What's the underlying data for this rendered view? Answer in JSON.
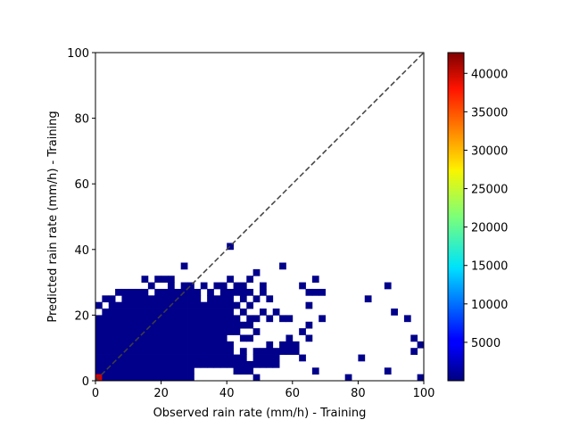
{
  "chart_data": {
    "type": "heatmap",
    "title": "",
    "xlabel": "Observed rain rate (mm/h) - Training",
    "ylabel": "Predicted rain rate (mm/h) - Training",
    "xlim": [
      0,
      100
    ],
    "ylim": [
      0,
      100
    ],
    "xticks": [
      0,
      20,
      40,
      60,
      80,
      100
    ],
    "yticks": [
      0,
      20,
      40,
      60,
      80,
      100
    ],
    "bin_width": 2,
    "identity_line": {
      "from": [
        0,
        0
      ],
      "to": [
        100,
        100
      ],
      "style": "dashed",
      "color": "#404040"
    },
    "colorbar": {
      "colormap": "jet",
      "range": [
        0,
        42700
      ],
      "ticks": [
        5000,
        10000,
        15000,
        20000,
        25000,
        30000,
        35000,
        40000
      ],
      "tick_labels": [
        "5000",
        "10000",
        "15000",
        "20000",
        "25000",
        "30000",
        "35000",
        "40000"
      ]
    },
    "peak_cell": {
      "x": 0,
      "y": 0,
      "count": 42700
    },
    "occupied_cells": [
      [
        0,
        0
      ],
      [
        2,
        0
      ],
      [
        4,
        0
      ],
      [
        6,
        0
      ],
      [
        8,
        0
      ],
      [
        10,
        0
      ],
      [
        12,
        0
      ],
      [
        14,
        0
      ],
      [
        16,
        0
      ],
      [
        18,
        0
      ],
      [
        20,
        0
      ],
      [
        22,
        0
      ],
      [
        24,
        0
      ],
      [
        26,
        0
      ],
      [
        28,
        0
      ],
      [
        48,
        0
      ],
      [
        76,
        0
      ],
      [
        98,
        0
      ],
      [
        0,
        2
      ],
      [
        2,
        2
      ],
      [
        4,
        2
      ],
      [
        6,
        2
      ],
      [
        8,
        2
      ],
      [
        10,
        2
      ],
      [
        12,
        2
      ],
      [
        14,
        2
      ],
      [
        16,
        2
      ],
      [
        18,
        2
      ],
      [
        20,
        2
      ],
      [
        22,
        2
      ],
      [
        24,
        2
      ],
      [
        26,
        2
      ],
      [
        28,
        2
      ],
      [
        42,
        2
      ],
      [
        44,
        2
      ],
      [
        46,
        2
      ],
      [
        66,
        2
      ],
      [
        88,
        2
      ],
      [
        0,
        4
      ],
      [
        2,
        4
      ],
      [
        4,
        4
      ],
      [
        6,
        4
      ],
      [
        8,
        4
      ],
      [
        10,
        4
      ],
      [
        12,
        4
      ],
      [
        14,
        4
      ],
      [
        16,
        4
      ],
      [
        18,
        4
      ],
      [
        20,
        4
      ],
      [
        22,
        4
      ],
      [
        24,
        4
      ],
      [
        26,
        4
      ],
      [
        28,
        4
      ],
      [
        30,
        4
      ],
      [
        32,
        4
      ],
      [
        34,
        4
      ],
      [
        36,
        4
      ],
      [
        38,
        4
      ],
      [
        40,
        4
      ],
      [
        42,
        4
      ],
      [
        44,
        4
      ],
      [
        46,
        4
      ],
      [
        48,
        4
      ],
      [
        50,
        4
      ],
      [
        52,
        4
      ],
      [
        54,
        4
      ],
      [
        0,
        6
      ],
      [
        2,
        6
      ],
      [
        4,
        6
      ],
      [
        6,
        6
      ],
      [
        8,
        6
      ],
      [
        10,
        6
      ],
      [
        12,
        6
      ],
      [
        14,
        6
      ],
      [
        16,
        6
      ],
      [
        18,
        6
      ],
      [
        20,
        6
      ],
      [
        22,
        6
      ],
      [
        24,
        6
      ],
      [
        26,
        6
      ],
      [
        28,
        6
      ],
      [
        30,
        6
      ],
      [
        32,
        6
      ],
      [
        34,
        6
      ],
      [
        36,
        6
      ],
      [
        38,
        6
      ],
      [
        40,
        6
      ],
      [
        42,
        6
      ],
      [
        44,
        6
      ],
      [
        48,
        6
      ],
      [
        50,
        6
      ],
      [
        52,
        6
      ],
      [
        54,
        6
      ],
      [
        62,
        6
      ],
      [
        80,
        6
      ],
      [
        0,
        8
      ],
      [
        2,
        8
      ],
      [
        4,
        8
      ],
      [
        6,
        8
      ],
      [
        8,
        8
      ],
      [
        10,
        8
      ],
      [
        12,
        8
      ],
      [
        14,
        8
      ],
      [
        16,
        8
      ],
      [
        18,
        8
      ],
      [
        20,
        8
      ],
      [
        22,
        8
      ],
      [
        24,
        8
      ],
      [
        26,
        8
      ],
      [
        28,
        8
      ],
      [
        30,
        8
      ],
      [
        32,
        8
      ],
      [
        34,
        8
      ],
      [
        36,
        8
      ],
      [
        38,
        8
      ],
      [
        40,
        8
      ],
      [
        44,
        8
      ],
      [
        48,
        8
      ],
      [
        50,
        8
      ],
      [
        52,
        8
      ],
      [
        54,
        8
      ],
      [
        56,
        8
      ],
      [
        58,
        8
      ],
      [
        60,
        8
      ],
      [
        96,
        8
      ],
      [
        0,
        10
      ],
      [
        2,
        10
      ],
      [
        4,
        10
      ],
      [
        6,
        10
      ],
      [
        8,
        10
      ],
      [
        10,
        10
      ],
      [
        12,
        10
      ],
      [
        14,
        10
      ],
      [
        16,
        10
      ],
      [
        18,
        10
      ],
      [
        20,
        10
      ],
      [
        22,
        10
      ],
      [
        24,
        10
      ],
      [
        26,
        10
      ],
      [
        28,
        10
      ],
      [
        30,
        10
      ],
      [
        32,
        10
      ],
      [
        34,
        10
      ],
      [
        36,
        10
      ],
      [
        38,
        10
      ],
      [
        40,
        10
      ],
      [
        52,
        10
      ],
      [
        56,
        10
      ],
      [
        58,
        10
      ],
      [
        60,
        10
      ],
      [
        98,
        10
      ],
      [
        0,
        12
      ],
      [
        2,
        12
      ],
      [
        4,
        12
      ],
      [
        6,
        12
      ],
      [
        8,
        12
      ],
      [
        10,
        12
      ],
      [
        12,
        12
      ],
      [
        14,
        12
      ],
      [
        16,
        12
      ],
      [
        18,
        12
      ],
      [
        20,
        12
      ],
      [
        22,
        12
      ],
      [
        24,
        12
      ],
      [
        26,
        12
      ],
      [
        28,
        12
      ],
      [
        30,
        12
      ],
      [
        32,
        12
      ],
      [
        34,
        12
      ],
      [
        36,
        12
      ],
      [
        38,
        12
      ],
      [
        44,
        12
      ],
      [
        46,
        12
      ],
      [
        58,
        12
      ],
      [
        64,
        12
      ],
      [
        96,
        12
      ],
      [
        0,
        14
      ],
      [
        2,
        14
      ],
      [
        4,
        14
      ],
      [
        6,
        14
      ],
      [
        8,
        14
      ],
      [
        10,
        14
      ],
      [
        12,
        14
      ],
      [
        14,
        14
      ],
      [
        16,
        14
      ],
      [
        18,
        14
      ],
      [
        20,
        14
      ],
      [
        22,
        14
      ],
      [
        24,
        14
      ],
      [
        26,
        14
      ],
      [
        28,
        14
      ],
      [
        30,
        14
      ],
      [
        32,
        14
      ],
      [
        34,
        14
      ],
      [
        36,
        14
      ],
      [
        38,
        14
      ],
      [
        40,
        14
      ],
      [
        42,
        14
      ],
      [
        48,
        14
      ],
      [
        62,
        14
      ],
      [
        100,
        14
      ],
      [
        0,
        16
      ],
      [
        2,
        16
      ],
      [
        4,
        16
      ],
      [
        6,
        16
      ],
      [
        8,
        16
      ],
      [
        10,
        16
      ],
      [
        12,
        16
      ],
      [
        14,
        16
      ],
      [
        16,
        16
      ],
      [
        18,
        16
      ],
      [
        20,
        16
      ],
      [
        22,
        16
      ],
      [
        24,
        16
      ],
      [
        26,
        16
      ],
      [
        28,
        16
      ],
      [
        30,
        16
      ],
      [
        32,
        16
      ],
      [
        34,
        16
      ],
      [
        36,
        16
      ],
      [
        38,
        16
      ],
      [
        40,
        16
      ],
      [
        42,
        16
      ],
      [
        44,
        16
      ],
      [
        46,
        16
      ],
      [
        64,
        16
      ],
      [
        0,
        18
      ],
      [
        2,
        18
      ],
      [
        4,
        18
      ],
      [
        6,
        18
      ],
      [
        8,
        18
      ],
      [
        10,
        18
      ],
      [
        12,
        18
      ],
      [
        14,
        18
      ],
      [
        16,
        18
      ],
      [
        18,
        18
      ],
      [
        20,
        18
      ],
      [
        22,
        18
      ],
      [
        24,
        18
      ],
      [
        26,
        18
      ],
      [
        28,
        18
      ],
      [
        30,
        18
      ],
      [
        32,
        18
      ],
      [
        34,
        18
      ],
      [
        36,
        18
      ],
      [
        38,
        18
      ],
      [
        40,
        18
      ],
      [
        42,
        18
      ],
      [
        46,
        18
      ],
      [
        48,
        18
      ],
      [
        52,
        18
      ],
      [
        56,
        18
      ],
      [
        58,
        18
      ],
      [
        68,
        18
      ],
      [
        94,
        18
      ],
      [
        2,
        20
      ],
      [
        4,
        20
      ],
      [
        6,
        20
      ],
      [
        8,
        20
      ],
      [
        10,
        20
      ],
      [
        12,
        20
      ],
      [
        14,
        20
      ],
      [
        16,
        20
      ],
      [
        18,
        20
      ],
      [
        20,
        20
      ],
      [
        22,
        20
      ],
      [
        24,
        20
      ],
      [
        26,
        20
      ],
      [
        28,
        20
      ],
      [
        30,
        20
      ],
      [
        32,
        20
      ],
      [
        34,
        20
      ],
      [
        36,
        20
      ],
      [
        38,
        20
      ],
      [
        40,
        20
      ],
      [
        44,
        20
      ],
      [
        50,
        20
      ],
      [
        54,
        20
      ],
      [
        90,
        20
      ],
      [
        0,
        22
      ],
      [
        4,
        22
      ],
      [
        6,
        22
      ],
      [
        8,
        22
      ],
      [
        10,
        22
      ],
      [
        12,
        22
      ],
      [
        14,
        22
      ],
      [
        16,
        22
      ],
      [
        18,
        22
      ],
      [
        20,
        22
      ],
      [
        22,
        22
      ],
      [
        24,
        22
      ],
      [
        26,
        22
      ],
      [
        28,
        22
      ],
      [
        30,
        22
      ],
      [
        32,
        22
      ],
      [
        34,
        22
      ],
      [
        36,
        22
      ],
      [
        38,
        22
      ],
      [
        40,
        22
      ],
      [
        42,
        22
      ],
      [
        46,
        22
      ],
      [
        64,
        22
      ],
      [
        2,
        24
      ],
      [
        4,
        24
      ],
      [
        8,
        24
      ],
      [
        10,
        24
      ],
      [
        12,
        24
      ],
      [
        14,
        24
      ],
      [
        16,
        24
      ],
      [
        18,
        24
      ],
      [
        20,
        24
      ],
      [
        22,
        24
      ],
      [
        24,
        24
      ],
      [
        26,
        24
      ],
      [
        28,
        24
      ],
      [
        30,
        24
      ],
      [
        34,
        24
      ],
      [
        36,
        24
      ],
      [
        38,
        24
      ],
      [
        40,
        24
      ],
      [
        44,
        24
      ],
      [
        48,
        24
      ],
      [
        52,
        24
      ],
      [
        82,
        24
      ],
      [
        6,
        26
      ],
      [
        8,
        26
      ],
      [
        10,
        26
      ],
      [
        12,
        26
      ],
      [
        14,
        26
      ],
      [
        18,
        26
      ],
      [
        20,
        26
      ],
      [
        22,
        26
      ],
      [
        24,
        26
      ],
      [
        26,
        26
      ],
      [
        28,
        26
      ],
      [
        30,
        26
      ],
      [
        34,
        26
      ],
      [
        38,
        26
      ],
      [
        40,
        26
      ],
      [
        42,
        26
      ],
      [
        44,
        26
      ],
      [
        46,
        26
      ],
      [
        50,
        26
      ],
      [
        64,
        26
      ],
      [
        66,
        26
      ],
      [
        68,
        26
      ],
      [
        16,
        28
      ],
      [
        22,
        28
      ],
      [
        26,
        28
      ],
      [
        28,
        28
      ],
      [
        32,
        28
      ],
      [
        36,
        28
      ],
      [
        38,
        28
      ],
      [
        42,
        28
      ],
      [
        44,
        28
      ],
      [
        50,
        28
      ],
      [
        62,
        28
      ],
      [
        88,
        28
      ],
      [
        14,
        30
      ],
      [
        18,
        30
      ],
      [
        20,
        30
      ],
      [
        22,
        30
      ],
      [
        40,
        30
      ],
      [
        46,
        30
      ],
      [
        66,
        30
      ],
      [
        48,
        32
      ],
      [
        26,
        34
      ],
      [
        56,
        34
      ],
      [
        40,
        40
      ]
    ]
  }
}
